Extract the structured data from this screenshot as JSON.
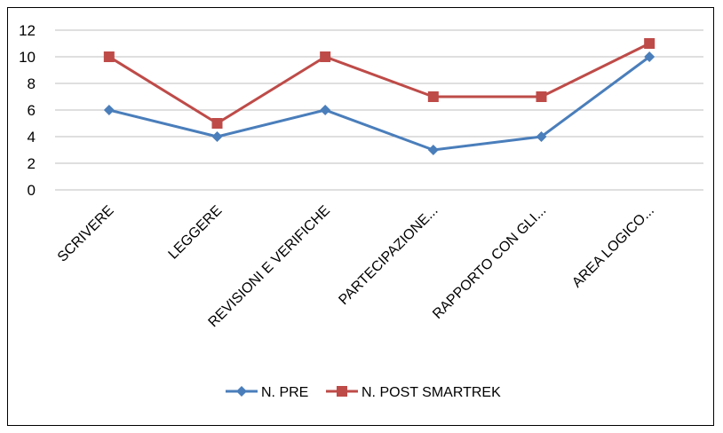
{
  "chart_data": {
    "type": "line",
    "title": "",
    "xlabel": "",
    "ylabel": "",
    "categories": [
      "SCRIVERE",
      "LEGGERE",
      "REVISIONI E VERIFICHE",
      "PARTECIPAZIONE...",
      "RAPPORTO CON GLI...",
      "AREA LOGICO..."
    ],
    "ylim": [
      0,
      12
    ],
    "yticks": [
      "0",
      "2",
      "4",
      "6",
      "8",
      "10",
      "12"
    ],
    "grid": true,
    "legend_position": "bottom",
    "series": [
      {
        "name": "N. PRE",
        "values": [
          6,
          4,
          6,
          3,
          4,
          10
        ],
        "color": "#4a7ebb",
        "marker": "diamond"
      },
      {
        "name": "N. POST SMARTREK",
        "values": [
          10,
          5,
          10,
          7,
          7,
          11
        ],
        "color": "#be4b48",
        "marker": "square"
      }
    ]
  }
}
